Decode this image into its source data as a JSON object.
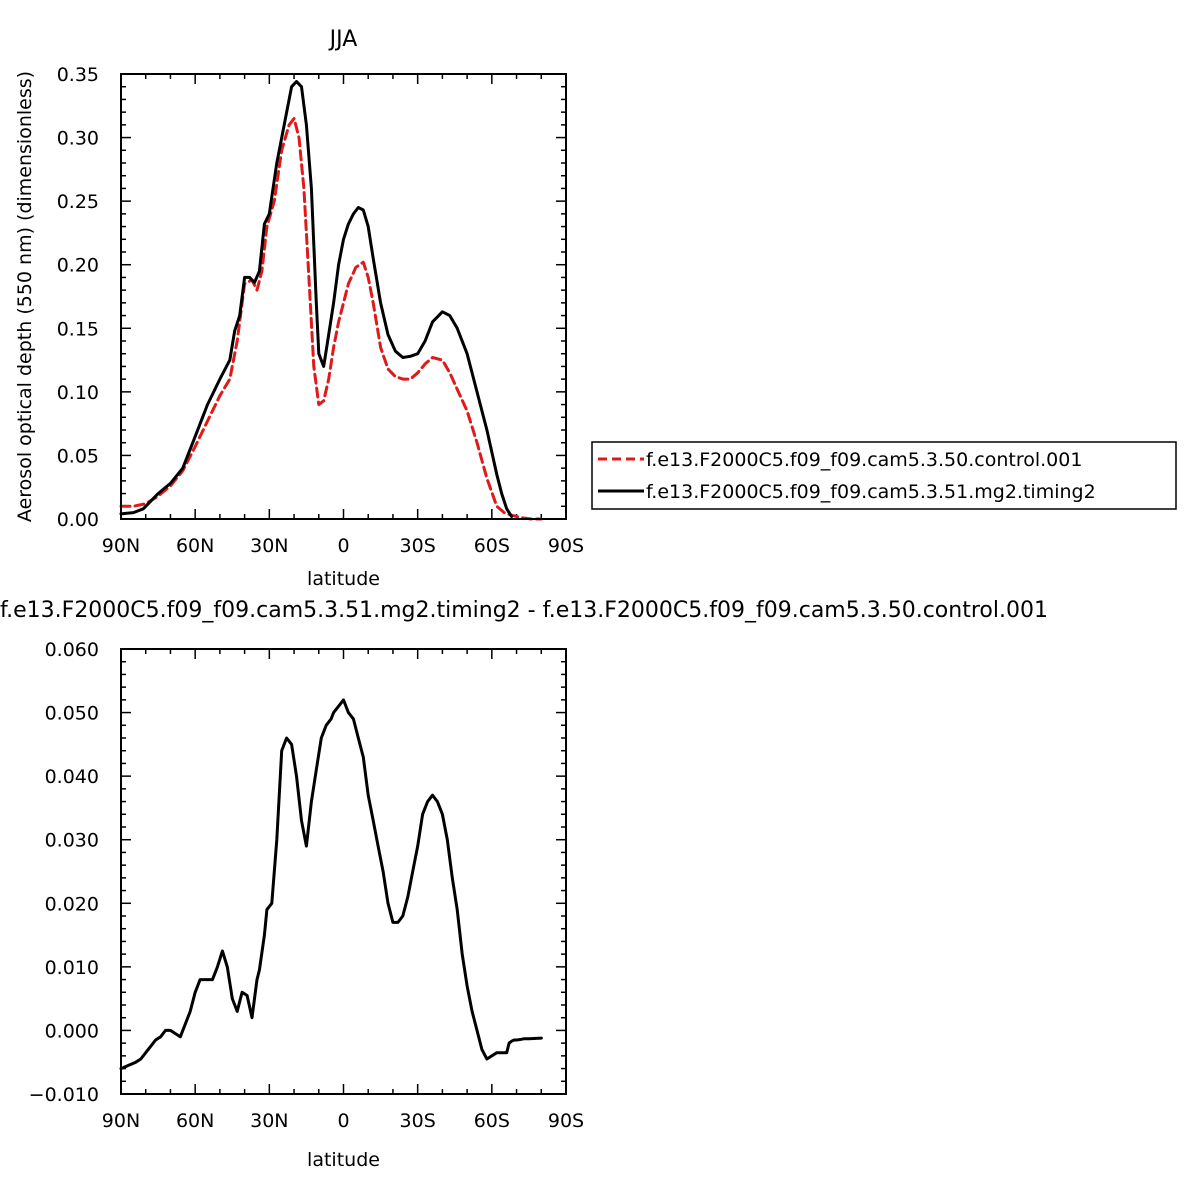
{
  "chart_data": [
    {
      "type": "line",
      "title": "JJA",
      "xlabel": "latitude",
      "ylabel": "Aerosol optical depth (550 nm) (dimensionless)",
      "xlim": [
        90,
        -90
      ],
      "ylim": [
        0,
        0.35
      ],
      "x_ticks": [
        {
          "value": 90,
          "label": "90N"
        },
        {
          "value": 60,
          "label": "60N"
        },
        {
          "value": 30,
          "label": "30N"
        },
        {
          "value": 0,
          "label": "0"
        },
        {
          "value": -30,
          "label": "30S"
        },
        {
          "value": -60,
          "label": "60S"
        },
        {
          "value": -90,
          "label": "90S"
        }
      ],
      "y_ticks": [
        {
          "value": 0,
          "label": "0.00"
        },
        {
          "value": 0.05,
          "label": "0.05"
        },
        {
          "value": 0.1,
          "label": "0.10"
        },
        {
          "value": 0.15,
          "label": "0.15"
        },
        {
          "value": 0.2,
          "label": "0.20"
        },
        {
          "value": 0.25,
          "label": "0.25"
        },
        {
          "value": 0.3,
          "label": "0.30"
        },
        {
          "value": 0.35,
          "label": "0.35"
        }
      ],
      "grid": false,
      "legend_position": "right",
      "series": [
        {
          "name": "f.e13.F2000C5.f09_f09.cam5.3.50.control.001",
          "color": "#e01a1a",
          "dash": "dashed",
          "x": [
            90,
            85,
            80,
            75,
            70,
            65,
            60,
            55,
            50,
            46,
            43,
            40,
            37,
            35,
            33,
            31,
            28,
            25,
            22,
            20,
            18,
            16,
            14,
            12,
            10,
            8,
            6,
            4,
            2,
            0,
            -2,
            -5,
            -8,
            -10,
            -12,
            -15,
            -18,
            -21,
            -24,
            -27,
            -30,
            -33,
            -36,
            -40,
            -43,
            -46,
            -50,
            -54,
            -58,
            -62,
            -65,
            -68,
            -72,
            -76,
            -80
          ],
          "y": [
            0.01,
            0.01,
            0.012,
            0.018,
            0.026,
            0.038,
            0.057,
            0.077,
            0.097,
            0.11,
            0.14,
            0.185,
            0.188,
            0.18,
            0.195,
            0.23,
            0.25,
            0.29,
            0.31,
            0.315,
            0.3,
            0.26,
            0.19,
            0.12,
            0.09,
            0.093,
            0.11,
            0.135,
            0.155,
            0.17,
            0.185,
            0.198,
            0.202,
            0.19,
            0.17,
            0.135,
            0.118,
            0.112,
            0.11,
            0.11,
            0.115,
            0.122,
            0.127,
            0.125,
            0.115,
            0.102,
            0.085,
            0.06,
            0.032,
            0.01,
            0.005,
            0.003,
            0.001,
            0.0,
            0.0
          ]
        },
        {
          "name": "f.e13.F2000C5.f09_f09.cam5.3.51.mg2.timing2",
          "color": "#000000",
          "dash": "solid",
          "x": [
            90,
            85,
            81,
            78,
            75,
            70,
            65,
            60,
            55,
            50,
            46,
            44,
            42,
            40,
            38,
            36,
            34,
            32,
            30,
            27,
            24,
            21,
            19,
            17,
            15,
            13,
            11,
            10,
            8,
            6,
            4,
            2,
            0,
            -2,
            -4,
            -6,
            -8,
            -10,
            -12,
            -15,
            -18,
            -21,
            -24,
            -27,
            -30,
            -33,
            -36,
            -40,
            -43,
            -46,
            -50,
            -54,
            -58,
            -62,
            -64,
            -66,
            -68
          ],
          "y": [
            0.004,
            0.005,
            0.008,
            0.014,
            0.02,
            0.028,
            0.04,
            0.065,
            0.09,
            0.11,
            0.125,
            0.148,
            0.16,
            0.19,
            0.19,
            0.186,
            0.195,
            0.232,
            0.24,
            0.28,
            0.31,
            0.34,
            0.344,
            0.34,
            0.31,
            0.26,
            0.17,
            0.13,
            0.12,
            0.145,
            0.17,
            0.2,
            0.22,
            0.232,
            0.24,
            0.245,
            0.243,
            0.23,
            0.205,
            0.17,
            0.145,
            0.132,
            0.127,
            0.128,
            0.13,
            0.14,
            0.155,
            0.163,
            0.16,
            0.15,
            0.13,
            0.1,
            0.07,
            0.035,
            0.02,
            0.008,
            0.002
          ]
        }
      ]
    },
    {
      "type": "line",
      "title": "f.e13.F2000C5.f09_f09.cam5.3.51.mg2.timing2 - f.e13.F2000C5.f09_f09.cam5.3.50.control.001",
      "xlabel": "latitude",
      "ylabel": "",
      "xlim": [
        90,
        -90
      ],
      "ylim": [
        -0.01,
        0.06
      ],
      "x_ticks": [
        {
          "value": 90,
          "label": "90N"
        },
        {
          "value": 60,
          "label": "60N"
        },
        {
          "value": 30,
          "label": "30N"
        },
        {
          "value": 0,
          "label": "0"
        },
        {
          "value": -30,
          "label": "30S"
        },
        {
          "value": -60,
          "label": "60S"
        },
        {
          "value": -90,
          "label": "90S"
        }
      ],
      "y_ticks": [
        {
          "value": -0.01,
          "label": "−0.010"
        },
        {
          "value": 0.0,
          "label": "0.000"
        },
        {
          "value": 0.01,
          "label": "0.010"
        },
        {
          "value": 0.02,
          "label": "0.020"
        },
        {
          "value": 0.03,
          "label": "0.030"
        },
        {
          "value": 0.04,
          "label": "0.040"
        },
        {
          "value": 0.05,
          "label": "0.050"
        },
        {
          "value": 0.06,
          "label": "0.060"
        }
      ],
      "grid": false,
      "series": [
        {
          "color": "#000000",
          "dash": "solid",
          "x": [
            90,
            87,
            84,
            82,
            80,
            78,
            76,
            74,
            72,
            70,
            68,
            66,
            64,
            62,
            60,
            58,
            56,
            55,
            53,
            51,
            49,
            47,
            45,
            43,
            41,
            39,
            37,
            35,
            34,
            32,
            31,
            29,
            27,
            25,
            23,
            21,
            19,
            17,
            15,
            13,
            11,
            9,
            7,
            6,
            5,
            4,
            2,
            0,
            -2,
            -4,
            -6,
            -8,
            -10,
            -12,
            -14,
            -16,
            -18,
            -20,
            -22,
            -24,
            -26,
            -28,
            -30,
            -32,
            -34,
            -36,
            -38,
            -40,
            -42,
            -44,
            -46,
            -48,
            -50,
            -52,
            -54,
            -56,
            -58,
            -60,
            -62,
            -64,
            -66,
            -67,
            -68,
            -69,
            -70,
            -72,
            -73,
            -75,
            -80
          ],
          "y": [
            -0.006,
            -0.0055,
            -0.005,
            -0.0045,
            -0.0035,
            -0.0025,
            -0.0015,
            -0.001,
            0.0,
            0.0,
            -0.0005,
            -0.001,
            0.001,
            0.003,
            0.006,
            0.008,
            0.008,
            0.008,
            0.008,
            0.01,
            0.0125,
            0.01,
            0.005,
            0.003,
            0.006,
            0.0055,
            0.002,
            0.008,
            0.0095,
            0.015,
            0.019,
            0.02,
            0.03,
            0.044,
            0.046,
            0.045,
            0.04,
            0.033,
            0.029,
            0.036,
            0.041,
            0.046,
            0.048,
            0.0485,
            0.049,
            0.05,
            0.051,
            0.052,
            0.05,
            0.049,
            0.046,
            0.043,
            0.037,
            0.033,
            0.029,
            0.025,
            0.02,
            0.017,
            0.017,
            0.018,
            0.021,
            0.025,
            0.029,
            0.034,
            0.036,
            0.037,
            0.036,
            0.034,
            0.03,
            0.024,
            0.019,
            0.012,
            0.007,
            0.003,
            0.0,
            -0.003,
            -0.0045,
            -0.004,
            -0.0035,
            -0.0035,
            -0.0035,
            -0.002,
            -0.0017,
            -0.0015,
            -0.0015,
            -0.0014,
            -0.0013,
            -0.0013,
            -0.0012
          ]
        }
      ]
    }
  ],
  "legend": {
    "entries": [
      {
        "label": "f.e13.F2000C5.f09_f09.cam5.3.50.control.001",
        "color": "#e01a1a",
        "dash": "dashed"
      },
      {
        "label": "f.e13.F2000C5.f09_f09.cam5.3.51.mg2.timing2",
        "color": "#000000",
        "dash": "solid"
      }
    ]
  }
}
